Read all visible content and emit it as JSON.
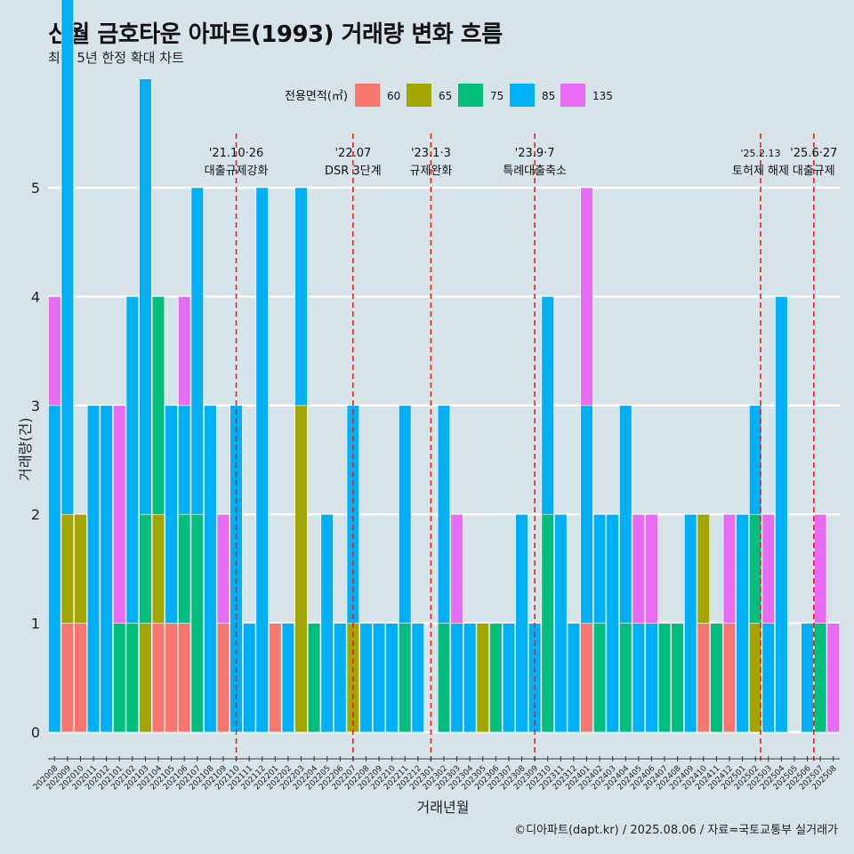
{
  "title": "신월 금호타운 아파트(1993) 거래량 변화 흐름",
  "subtitle": "최근 5년 한정 확대 차트",
  "caption": "©디아파트(dapt.kr) / 2025.08.06 / 자료=국토교통부 실거래가",
  "colors": {
    "60": "#f8766d",
    "65": "#a3a500",
    "75": "#00bf7d",
    "85": "#00b0f6",
    "135": "#e76bf3",
    "event_line": "#e8201a"
  },
  "chart_data": {
    "type": "bar",
    "xlabel": "거래년월",
    "ylabel": "거래량(건)",
    "ylim": [
      0,
      5
    ],
    "yticks": [
      0,
      1,
      2,
      3,
      4,
      5
    ],
    "legend_title": "전용면적(㎡)",
    "legend_position": "top",
    "grid": true,
    "x_tick_labels": [
      "202008",
      "202009",
      "202010",
      "202011",
      "202012",
      "202101",
      "202102",
      "202103",
      "202104",
      "202105",
      "202106",
      "202107",
      "202108",
      "202109",
      "202110",
      "202111",
      "202112",
      "202201",
      "202202",
      "202203",
      "202204",
      "202205",
      "202206",
      "202207",
      "202208",
      "202209",
      "202210",
      "202211",
      "202212",
      "202301",
      "202302",
      "202303",
      "202304",
      "202305",
      "202306",
      "202307",
      "202308",
      "202309",
      "202310",
      "202311",
      "202312",
      "202401",
      "202402",
      "202403",
      "202404",
      "202405",
      "202406",
      "202407",
      "202408",
      "202409",
      "202410",
      "202411",
      "202412",
      "202501",
      "202502",
      "202503",
      "202504",
      "202505",
      "202506",
      "202507",
      "202508"
    ],
    "series": [
      {
        "name": "60",
        "color_key": "60",
        "values": [
          0,
          1,
          1,
          0,
          0,
          0,
          0,
          0,
          1,
          1,
          1,
          0,
          0,
          1,
          0,
          0,
          0,
          1,
          0,
          0,
          0,
          0,
          0,
          0,
          0,
          0,
          0,
          0,
          0,
          0,
          0,
          0,
          0,
          0,
          0,
          0,
          0,
          0,
          0,
          0,
          0,
          1,
          0,
          0,
          0,
          0,
          0,
          0,
          0,
          0,
          1,
          0,
          1,
          0,
          0,
          0,
          0,
          0,
          0,
          0,
          0
        ]
      },
      {
        "name": "65",
        "color_key": "65",
        "values": [
          0,
          1,
          1,
          0,
          0,
          0,
          0,
          1,
          1,
          0,
          0,
          0,
          0,
          0,
          0,
          0,
          0,
          0,
          0,
          3,
          0,
          0,
          0,
          1,
          0,
          0,
          0,
          0,
          0,
          0,
          0,
          0,
          0,
          1,
          0,
          0,
          0,
          0,
          0,
          0,
          0,
          0,
          0,
          0,
          0,
          0,
          0,
          0,
          0,
          0,
          1,
          0,
          0,
          0,
          1,
          0,
          0,
          0,
          0,
          0,
          0
        ]
      },
      {
        "name": "75",
        "color_key": "75",
        "values": [
          0,
          0,
          0,
          0,
          0,
          1,
          1,
          1,
          2,
          0,
          1,
          2,
          0,
          0,
          0,
          0,
          0,
          0,
          0,
          0,
          1,
          0,
          0,
          0,
          0,
          0,
          0,
          1,
          0,
          0,
          1,
          0,
          0,
          0,
          1,
          0,
          0,
          0,
          2,
          0,
          0,
          0,
          1,
          0,
          1,
          0,
          0,
          1,
          1,
          0,
          0,
          1,
          0,
          0,
          1,
          0,
          0,
          0,
          0,
          1,
          0
        ]
      },
      {
        "name": "85",
        "color_key": "85",
        "values": [
          3,
          5,
          0,
          3,
          3,
          0,
          3,
          4,
          0,
          2,
          1,
          3,
          3,
          0,
          3,
          1,
          5,
          0,
          1,
          2,
          0,
          2,
          1,
          2,
          1,
          1,
          1,
          2,
          1,
          0,
          2,
          1,
          1,
          0,
          0,
          1,
          2,
          1,
          2,
          2,
          1,
          2,
          1,
          2,
          2,
          1,
          1,
          0,
          0,
          2,
          0,
          0,
          0,
          2,
          1,
          1,
          4,
          0,
          1,
          0,
          0
        ]
      },
      {
        "name": "135",
        "color_key": "135",
        "values": [
          1,
          0,
          0,
          0,
          0,
          2,
          0,
          0,
          0,
          0,
          1,
          0,
          0,
          1,
          0,
          0,
          0,
          0,
          0,
          0,
          0,
          0,
          0,
          0,
          0,
          0,
          0,
          0,
          0,
          0,
          0,
          1,
          0,
          0,
          0,
          0,
          0,
          0,
          0,
          0,
          0,
          2,
          0,
          0,
          0,
          1,
          1,
          0,
          0,
          0,
          0,
          0,
          1,
          0,
          0,
          1,
          0,
          0,
          0,
          1,
          1
        ]
      }
    ],
    "events": [
      {
        "at": 14,
        "line1": "'21.10·26",
        "line2": "대출규제강화"
      },
      {
        "at": 23,
        "line1": "'22.07",
        "line2": "DSR 3단계"
      },
      {
        "at": 29,
        "line1": "'23.1·3",
        "line2": "규제완화"
      },
      {
        "at": 37,
        "line1": "'23.9·7",
        "line2": "특례대출축소"
      },
      {
        "at": 54.4,
        "line1": "'25.2.13",
        "line2": "토허제 해제",
        "small": true
      },
      {
        "at": 58.5,
        "line1": "'25.6·27",
        "line2": "대출규제"
      }
    ]
  }
}
